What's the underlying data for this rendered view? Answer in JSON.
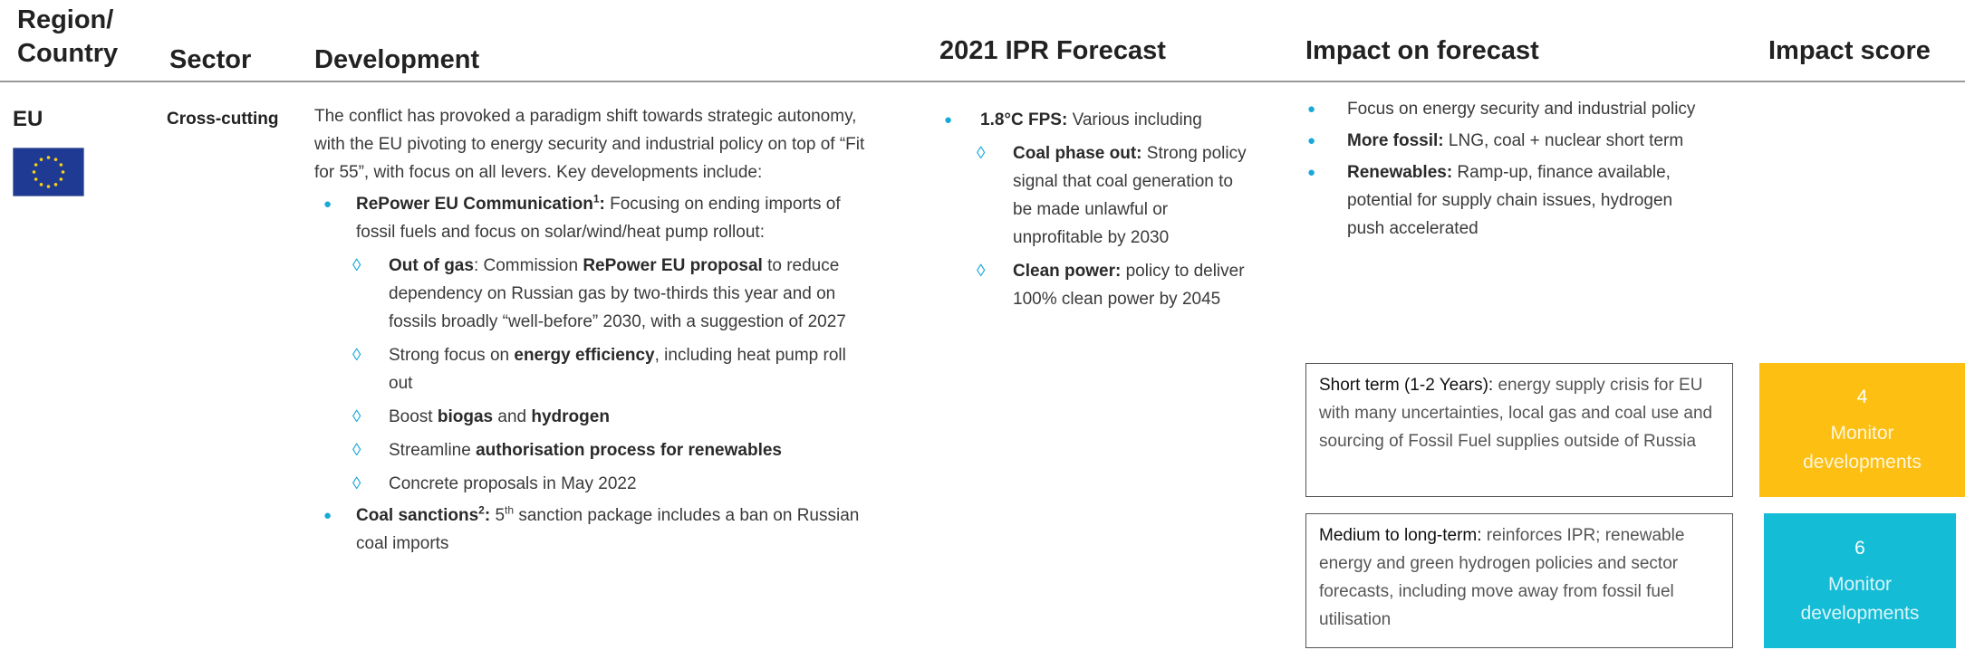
{
  "headers": {
    "region": [
      "Region/",
      "Country"
    ],
    "sector": "Sector",
    "development": "Development",
    "forecast": "2021 IPR Forecast",
    "impact": "Impact on forecast",
    "score": "Impact score"
  },
  "row": {
    "region": "EU",
    "sector": "Cross-cutting",
    "development": {
      "intro": [
        {
          "t": "The conflict has provoked a paradigm shift towards strategic autonomy, with the EU pivoting to energy security and industrial policy on top of “Fit for 55”, with focus on all levers. Key developments include:"
        }
      ],
      "bullets": [
        {
          "runs": [
            {
              "t": "RePower EU Communication",
              "b": true
            },
            {
              "t": "1",
              "b": true,
              "sup": true
            },
            {
              "t": ":",
              "b": true
            },
            {
              "t": " Focusing on ending imports of fossil fuels and focus on solar/wind/heat pump rollout:"
            }
          ],
          "subs": [
            [
              {
                "t": "Out of gas",
                "b": true
              },
              {
                "t": ": Commission "
              },
              {
                "t": "RePower EU proposal",
                "b": true
              },
              {
                "t": " to reduce dependency on Russian gas by two-thirds this year and on fossils broadly “well-before” 2030, with a suggestion of 2027"
              }
            ],
            [
              {
                "t": "Strong focus on "
              },
              {
                "t": "energy efficiency",
                "b": true
              },
              {
                "t": ", including heat pump roll out"
              }
            ],
            [
              {
                "t": "Boost "
              },
              {
                "t": "biogas",
                "b": true
              },
              {
                "t": " and "
              },
              {
                "t": "hydrogen",
                "b": true
              }
            ],
            [
              {
                "t": "Streamline "
              },
              {
                "t": "authorisation process for renewables",
                "b": true
              }
            ],
            [
              {
                "t": "Concrete proposals in May 2022"
              }
            ]
          ]
        },
        {
          "runs": [
            {
              "t": "Coal sanctions",
              "b": true
            },
            {
              "t": "2",
              "b": true,
              "sup": true
            },
            {
              "t": ":",
              "b": true
            },
            {
              "t": " 5"
            },
            {
              "t": "th",
              "sup": true
            },
            {
              "t": " sanction package includes a ban on Russian coal imports"
            }
          ],
          "subs": []
        }
      ]
    },
    "forecast": {
      "bullets": [
        {
          "runs": [
            {
              "t": "1.8°C FPS:",
              "b": true
            },
            {
              "t": " Various including"
            }
          ],
          "subs": [
            [
              {
                "t": "Coal phase out:",
                "b": true
              },
              {
                "t": " Strong policy signal that coal generation to be made unlawful or unprofitable by 2030"
              }
            ],
            [
              {
                "t": "Clean power:",
                "b": true
              },
              {
                "t": " policy to deliver 100% clean power by 2045"
              }
            ]
          ]
        }
      ]
    },
    "impact": {
      "bullets": [
        {
          "runs": [
            {
              "t": "Focus on energy security and industrial policy"
            }
          ],
          "subs": []
        },
        {
          "runs": [
            {
              "t": "More fossil:",
              "b": true
            },
            {
              "t": " LNG, coal + nuclear short term"
            }
          ],
          "subs": []
        },
        {
          "runs": [
            {
              "t": "Renewables:",
              "b": true
            },
            {
              "t": " Ramp-up, finance available, potential for supply chain issues, hydrogen push accelerated"
            }
          ],
          "subs": []
        }
      ]
    },
    "outlook": [
      {
        "runs": [
          {
            "t": "Short term (1-2 Years):",
            "k": true
          },
          {
            "t": " energy supply crisis for EU with many uncertainties, local gas and coal use and sourcing of Fossil Fuel supplies outside of Russia"
          }
        ],
        "score": "4",
        "label": "Monitor developments",
        "color": "#fcbf12"
      },
      {
        "runs": [
          {
            "t": "Medium to long-term:",
            "k": true
          },
          {
            "t": " reinforces IPR; renewable energy and green hydrogen policies and sector forecasts, including move away from fossil fuel utilisation"
          }
        ],
        "score": "6",
        "label": "Monitor developments",
        "color": "#14bcd6"
      }
    ]
  }
}
